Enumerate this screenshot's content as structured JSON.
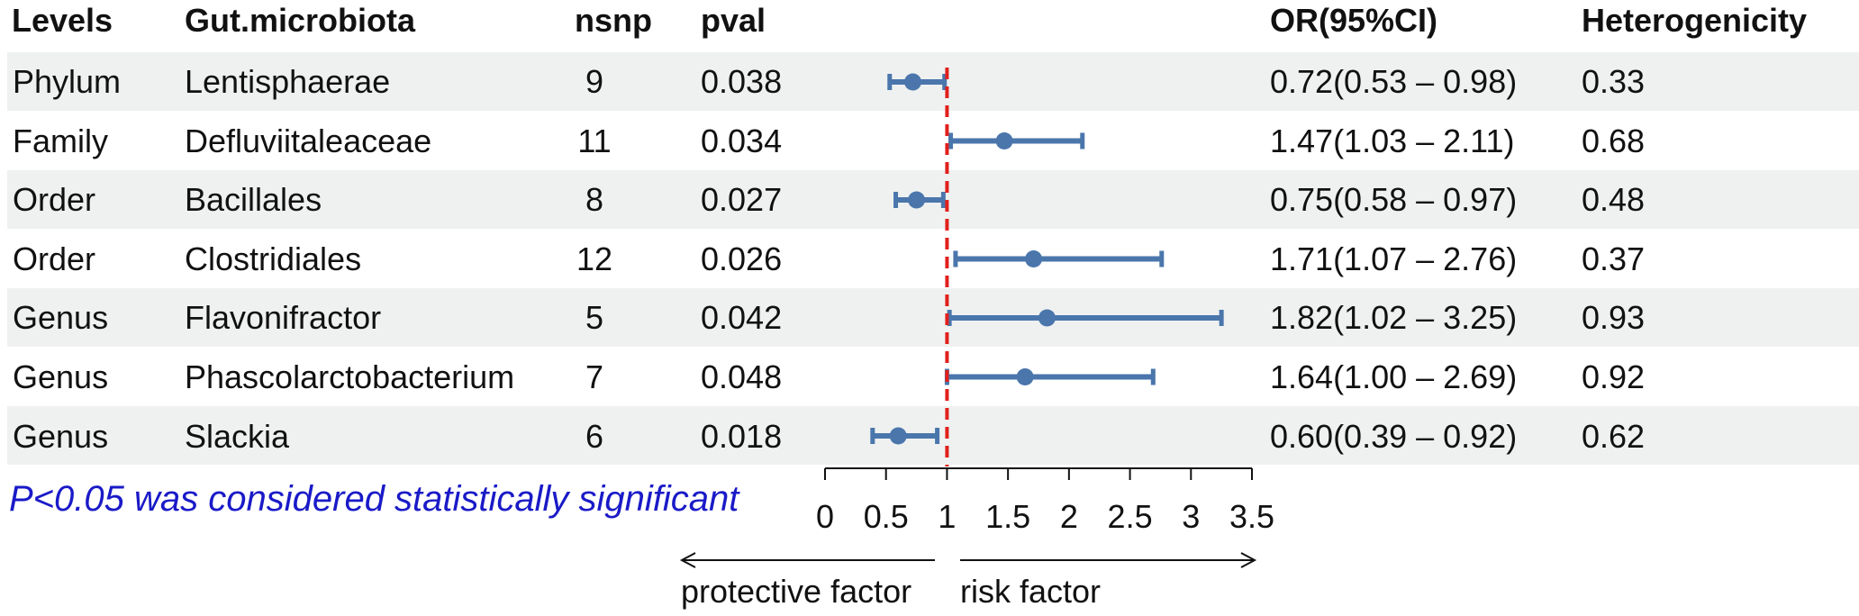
{
  "headers": {
    "levels": "Levels",
    "microbiota": "Gut.microbiota",
    "nsnp": "nsnp",
    "pval": "pval",
    "or": "OR(95%CI)",
    "het": "Heterogenicity"
  },
  "rows": [
    {
      "level": "Phylum",
      "taxon": "Lentisphaerae",
      "nsnp": "9",
      "pval": "0.038",
      "or_text": "0.72(0.53 – 0.98)",
      "het": "0.33"
    },
    {
      "level": "Family",
      "taxon": "Defluviitaleaceae",
      "nsnp": "11",
      "pval": "0.034",
      "or_text": "1.47(1.03 – 2.11)",
      "het": "0.68"
    },
    {
      "level": "Order",
      "taxon": "Bacillales",
      "nsnp": "8",
      "pval": "0.027",
      "or_text": "0.75(0.58 – 0.97)",
      "het": "0.48"
    },
    {
      "level": "Order",
      "taxon": "Clostridiales",
      "nsnp": "12",
      "pval": "0.026",
      "or_text": "1.71(1.07 – 2.76)",
      "het": "0.37"
    },
    {
      "level": "Genus",
      "taxon": "Flavonifractor",
      "nsnp": "5",
      "pval": "0.042",
      "or_text": "1.82(1.02 – 3.25)",
      "het": "0.93"
    },
    {
      "level": "Genus",
      "taxon": "Phascolarctobacterium",
      "nsnp": "7",
      "pval": "0.048",
      "or_text": "1.64(1.00 – 2.69)",
      "het": "0.92"
    },
    {
      "level": "Genus",
      "taxon": "Slackia",
      "nsnp": "6",
      "pval": "0.018",
      "or_text": "0.60(0.39 – 0.92)",
      "het": "0.62"
    }
  ],
  "footnote": "P<0.05 was considered statistically significant",
  "direction": {
    "left": "protective factor",
    "right": "risk factor"
  },
  "chart_data": {
    "type": "forest",
    "title": "",
    "xlabel": "",
    "categories": [
      "Lentisphaerae",
      "Defluviitaleaceae",
      "Bacillales",
      "Clostridiales",
      "Flavonifractor",
      "Phascolarctobacterium",
      "Slackia"
    ],
    "or": [
      0.72,
      1.47,
      0.75,
      1.71,
      1.82,
      1.64,
      0.6
    ],
    "ci_low": [
      0.53,
      1.03,
      0.58,
      1.07,
      1.02,
      1.0,
      0.39
    ],
    "ci_high": [
      0.98,
      2.11,
      0.97,
      2.76,
      3.25,
      2.69,
      0.92
    ],
    "reference_line": 1,
    "xlim": [
      0,
      3.5
    ],
    "xticks": [
      0,
      0.5,
      1,
      1.5,
      2,
      2.5,
      3,
      3.5
    ],
    "xtick_labels": [
      "0",
      "0.5",
      "1",
      "1.5",
      "2",
      "2.5",
      "3",
      "3.5"
    ],
    "colors": {
      "marker": "#4a76ac",
      "reference": "#e0201c",
      "row_shade": "#eff1f0",
      "footnote": "#1a1ac8"
    }
  }
}
